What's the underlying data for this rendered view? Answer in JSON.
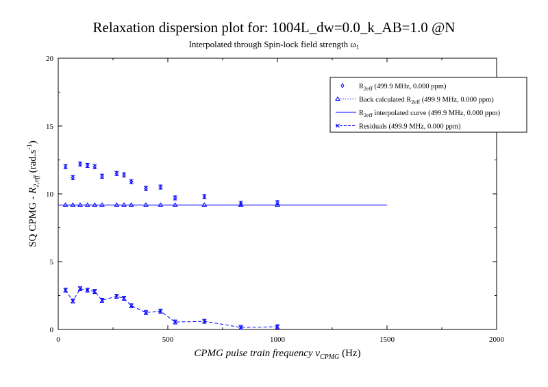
{
  "chart_data": {
    "type": "scatter",
    "title": "Relaxation dispersion plot for: 1004L_dw=0.0_k_AB=1.0 @N",
    "subtitle": "Interpolated through Spin-lock field strength ω",
    "subtitle_sub": "1",
    "xlabel": {
      "pre": "CPMG pulse train frequency ",
      "nu": "ν",
      "sub": "CPMG",
      "post": " (Hz)"
    },
    "ylabel": {
      "pre": "SQ CPMG - ",
      "r": "R",
      "sub": "2,eff",
      "post": " (rad.s",
      "sup": "-1",
      "end": ")"
    },
    "xlim": [
      0,
      2000
    ],
    "ylim": [
      0,
      20
    ],
    "xticks": [
      0,
      500,
      1000,
      1500,
      2000
    ],
    "yticks": [
      0,
      5,
      10,
      15,
      20
    ],
    "grid": false,
    "color": "#0000ff",
    "legend": {
      "placement": "top-right",
      "entries": [
        {
          "key": "measured",
          "pre": "R",
          "sub": "2eff",
          "post": " (499.9 MHz, 0.000 ppm)",
          "prefix": ""
        },
        {
          "key": "back",
          "pre": "Back calculated R",
          "sub": "2eff",
          "post": " (499.9 MHz, 0.000 ppm)",
          "prefix": ""
        },
        {
          "key": "interp",
          "pre": "R",
          "sub": "2eff",
          "post": " interpolated curve (499.9 MHz, 0.000 ppm)",
          "prefix": ""
        },
        {
          "key": "resid",
          "pre": "Residuals (499.9 MHz, 0.000 ppm)",
          "sub": "",
          "post": "",
          "prefix": ""
        }
      ]
    },
    "series": [
      {
        "key": "measured",
        "marker": "diamond",
        "x": [
          33.3,
          66.7,
          100,
          133.3,
          166.7,
          200,
          266.7,
          300,
          333.3,
          400,
          466.7,
          533.3,
          666.7,
          833.3,
          1000
        ],
        "y": [
          12.0,
          11.2,
          12.2,
          12.1,
          12.0,
          11.3,
          11.5,
          11.4,
          10.9,
          10.4,
          10.5,
          9.7,
          9.8,
          9.3,
          9.35
        ],
        "err": [
          0.15,
          0.15,
          0.15,
          0.15,
          0.15,
          0.15,
          0.15,
          0.15,
          0.15,
          0.15,
          0.15,
          0.15,
          0.15,
          0.15,
          0.15
        ]
      },
      {
        "key": "back",
        "marker": "triangle",
        "x": [
          33.3,
          66.7,
          100,
          133.3,
          166.7,
          200,
          266.7,
          300,
          333.3,
          400,
          466.7,
          533.3,
          666.7,
          833.3,
          1000
        ],
        "y": [
          9.18,
          9.18,
          9.18,
          9.18,
          9.18,
          9.18,
          9.18,
          9.18,
          9.18,
          9.18,
          9.18,
          9.18,
          9.18,
          9.18,
          9.18
        ]
      },
      {
        "key": "interp",
        "marker": "line",
        "x": [
          0,
          1500
        ],
        "y": [
          9.18,
          9.18
        ]
      },
      {
        "key": "resid",
        "marker": "cross",
        "x": [
          33.3,
          66.7,
          100,
          133.3,
          166.7,
          200,
          266.7,
          300,
          333.3,
          400,
          466.7,
          533.3,
          666.7,
          833.3,
          1000
        ],
        "y": [
          2.9,
          2.1,
          3.0,
          2.9,
          2.8,
          2.15,
          2.45,
          2.3,
          1.75,
          1.25,
          1.35,
          0.55,
          0.6,
          0.15,
          0.2
        ],
        "err": [
          0.15,
          0.15,
          0.15,
          0.15,
          0.15,
          0.15,
          0.15,
          0.15,
          0.15,
          0.15,
          0.15,
          0.15,
          0.15,
          0.15,
          0.15
        ]
      }
    ]
  }
}
